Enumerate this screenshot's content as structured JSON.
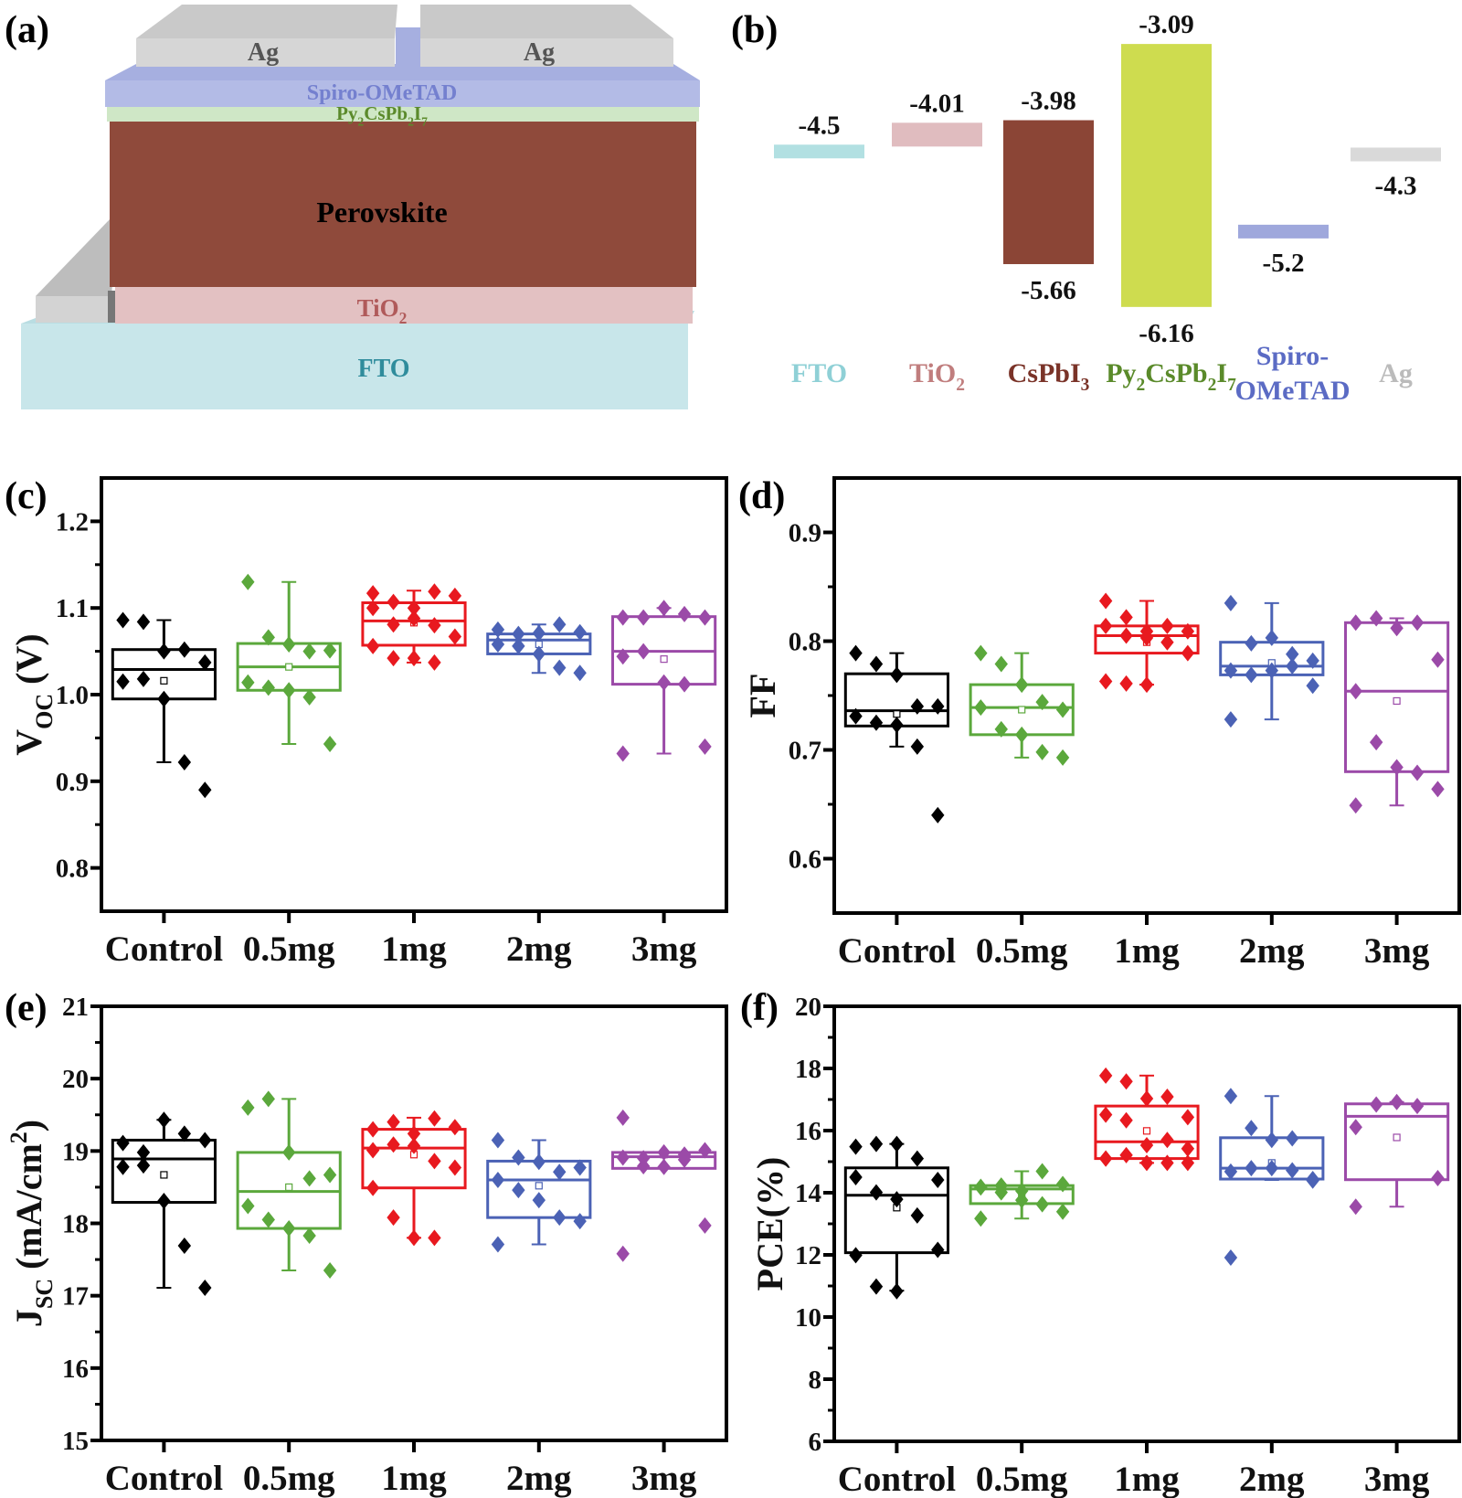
{
  "panel_labels": {
    "a": "(a)",
    "b": "(b)",
    "c": "(c)",
    "d": "(d)",
    "e": "(e)",
    "f": "(f)"
  },
  "schematic": {
    "layers": [
      {
        "id": "ag-left",
        "label": [
          {
            "t": "Ag"
          }
        ],
        "color": "#d3d3d3",
        "text_color": "#555555"
      },
      {
        "id": "ag-right",
        "label": [
          {
            "t": "Ag"
          }
        ],
        "color": "#d3d3d3",
        "text_color": "#555555"
      },
      {
        "id": "spiro",
        "label": [
          {
            "t": "Spiro-OMeTAD"
          }
        ],
        "color": "#b3bbe6",
        "text_color": "#7480cf"
      },
      {
        "id": "py",
        "label": [
          {
            "t": "Py"
          },
          {
            "t": "2",
            "sub": true
          },
          {
            "t": "CsPb"
          },
          {
            "t": "2",
            "sub": true
          },
          {
            "t": "I"
          },
          {
            "t": "7",
            "sub": true
          }
        ],
        "color": "#cfe7c6",
        "text_color": "#5b8a2b"
      },
      {
        "id": "perovskite",
        "label": [
          {
            "t": "Perovskite"
          }
        ],
        "color": "#8f4a3b",
        "text_color": "#000000"
      },
      {
        "id": "tio2",
        "label": [
          {
            "t": "TiO"
          },
          {
            "t": "2",
            "sub": true
          }
        ],
        "color": "#e3c1c2",
        "text_color": "#b05a5a"
      },
      {
        "id": "fto",
        "label": [
          {
            "t": "FTO"
          }
        ],
        "color": "#c8e6ea",
        "text_color": "#2f8c9c"
      }
    ]
  },
  "chart_data": [
    {
      "panel": "b",
      "type": "bar",
      "ylabel": "",
      "materials": [
        {
          "name": [
            {
              "t": "FTO"
            }
          ],
          "levels": [
            -4.5
          ],
          "color": "#b2e0e2",
          "text_color": "#8fd0d6"
        },
        {
          "name": [
            {
              "t": "TiO"
            },
            {
              "t": "2",
              "sub": true
            }
          ],
          "levels": [
            -4.01
          ],
          "color": "#e0bcbf",
          "text_color": "#c07d7d"
        },
        {
          "name": [
            {
              "t": "CsPbI"
            },
            {
              "t": "3",
              "sub": true
            }
          ],
          "levels": [
            -3.98,
            -5.66
          ],
          "color": "#8b4536",
          "text_color": "#7a3328"
        },
        {
          "name": [
            {
              "t": "Py"
            },
            {
              "t": "2",
              "sub": true
            },
            {
              "t": "CsPb"
            },
            {
              "t": "2",
              "sub": true
            },
            {
              "t": "I"
            },
            {
              "t": "7",
              "sub": true
            }
          ],
          "levels": [
            -3.09,
            -6.16
          ],
          "color": "#cedc4f",
          "text_color": "#5a8a2a"
        },
        {
          "name": [
            {
              "t": "Spiro-"
            }
          ],
          "name2": [
            {
              "t": "OMeTAD"
            }
          ],
          "levels": [
            -5.2
          ],
          "color": "#9fa8dc",
          "text_color": "#5b6bc4"
        },
        {
          "name": [
            {
              "t": "Ag"
            }
          ],
          "levels": [
            -4.3
          ],
          "color": "#d9d9d9",
          "text_color": "#bbbbbb"
        }
      ]
    },
    {
      "panel": "c",
      "type": "box",
      "ylabel": [
        {
          "t": "V"
        },
        {
          "t": "OC",
          "sub": true
        },
        {
          "t": " (V)"
        }
      ],
      "ylim": [
        0.75,
        1.25
      ],
      "yticks": [
        0.8,
        0.9,
        1.0,
        1.1,
        1.2
      ],
      "ytick_labels": [
        "0.8",
        "0.9",
        "1.0",
        "1.1",
        "1.2"
      ],
      "categories": [
        "Control",
        "0.5mg",
        "1mg",
        "2mg",
        "3mg"
      ],
      "groups": [
        {
          "color": "#000000",
          "box": {
            "q1": 0.995,
            "median": 1.029,
            "q3": 1.052,
            "whisker_low": 0.922,
            "whisker_high": 1.086,
            "mean": 1.016
          },
          "points": [
            1.086,
            1.084,
            1.05,
            1.052,
            1.037,
            1.015,
            1.018,
            0.995,
            0.922,
            0.89
          ]
        },
        {
          "color": "#5ba83c",
          "box": {
            "q1": 1.005,
            "median": 1.032,
            "q3": 1.059,
            "whisker_low": 0.943,
            "whisker_high": 1.13,
            "mean": 1.032
          },
          "points": [
            1.13,
            1.066,
            1.058,
            1.05,
            1.051,
            1.014,
            1.008,
            1.005,
            0.997,
            0.943
          ]
        },
        {
          "color": "#e8191f",
          "box": {
            "q1": 1.057,
            "median": 1.085,
            "q3": 1.106,
            "whisker_low": 1.037,
            "whisker_high": 1.12,
            "mean": 1.083
          },
          "points": [
            1.1,
            1.107,
            1.1,
            1.119,
            1.114,
            1.117,
            1.081,
            1.088,
            1.08,
            1.067,
            1.056,
            1.042,
            1.042,
            1.037
          ]
        },
        {
          "color": "#4b62b5",
          "box": {
            "q1": 1.047,
            "median": 1.063,
            "q3": 1.07,
            "whisker_low": 1.025,
            "whisker_high": 1.081,
            "mean": 1.058
          },
          "points": [
            1.058,
            1.056,
            1.071,
            1.081,
            1.072,
            1.075,
            1.07,
            1.047,
            1.031,
            1.025
          ]
        },
        {
          "color": "#9b4aa8",
          "box": {
            "q1": 1.012,
            "median": 1.05,
            "q3": 1.09,
            "whisker_low": 0.932,
            "whisker_high": 1.1,
            "mean": 1.041
          },
          "points": [
            1.089,
            1.089,
            1.1,
            1.093,
            1.089,
            1.044,
            1.05,
            1.014,
            1.012,
            0.94,
            0.932
          ]
        }
      ]
    },
    {
      "panel": "d",
      "type": "box",
      "ylabel": [
        {
          "t": "FF"
        }
      ],
      "ylim": [
        0.55,
        0.95
      ],
      "yticks": [
        0.6,
        0.7,
        0.8,
        0.9
      ],
      "ytick_labels": [
        "0.6",
        "0.7",
        "0.8",
        "0.9"
      ],
      "categories": [
        "Control",
        "0.5mg",
        "1mg",
        "2mg",
        "3mg"
      ],
      "groups": [
        {
          "color": "#000000",
          "box": {
            "q1": 0.722,
            "median": 0.736,
            "q3": 0.77,
            "whisker_low": 0.703,
            "whisker_high": 0.789,
            "mean": 0.733
          },
          "points": [
            0.789,
            0.779,
            0.769,
            0.74,
            0.74,
            0.731,
            0.725,
            0.723,
            0.703,
            0.64
          ]
        },
        {
          "color": "#5ba83c",
          "box": {
            "q1": 0.714,
            "median": 0.739,
            "q3": 0.76,
            "whisker_low": 0.693,
            "whisker_high": 0.789,
            "mean": 0.737
          },
          "points": [
            0.789,
            0.779,
            0.76,
            0.744,
            0.737,
            0.739,
            0.719,
            0.714,
            0.698,
            0.693
          ]
        },
        {
          "color": "#e8191f",
          "box": {
            "q1": 0.789,
            "median": 0.805,
            "q3": 0.814,
            "whisker_low": 0.76,
            "whisker_high": 0.837,
            "mean": 0.799
          },
          "points": [
            0.837,
            0.822,
            0.809,
            0.814,
            0.809,
            0.814,
            0.805,
            0.803,
            0.799,
            0.789,
            0.763,
            0.761,
            0.76
          ]
        },
        {
          "color": "#4b62b5",
          "box": {
            "q1": 0.769,
            "median": 0.777,
            "q3": 0.799,
            "whisker_low": 0.728,
            "whisker_high": 0.835,
            "mean": 0.78
          },
          "points": [
            0.835,
            0.798,
            0.803,
            0.788,
            0.782,
            0.773,
            0.769,
            0.773,
            0.777,
            0.759,
            0.728
          ]
        },
        {
          "color": "#9b4aa8",
          "box": {
            "q1": 0.68,
            "median": 0.754,
            "q3": 0.817,
            "whisker_low": 0.649,
            "whisker_high": 0.821,
            "mean": 0.745
          },
          "points": [
            0.817,
            0.821,
            0.812,
            0.817,
            0.783,
            0.754,
            0.707,
            0.684,
            0.679,
            0.664,
            0.649
          ]
        }
      ]
    },
    {
      "panel": "e",
      "type": "box",
      "ylabel": [
        {
          "t": "J"
        },
        {
          "t": "SC",
          "sub": true
        },
        {
          "t": " (mA/cm"
        },
        {
          "t": "2",
          "sup": true
        },
        {
          "t": ")"
        }
      ],
      "ylim": [
        15,
        21
      ],
      "yticks": [
        15,
        16,
        17,
        18,
        19,
        20,
        21
      ],
      "ytick_labels": [
        "15",
        "16",
        "17",
        "18",
        "19",
        "20",
        "21"
      ],
      "categories": [
        "Control",
        "0.5mg",
        "1mg",
        "2mg",
        "3mg"
      ],
      "groups": [
        {
          "color": "#000000",
          "box": {
            "q1": 18.29,
            "median": 18.89,
            "q3": 19.15,
            "whisker_low": 17.11,
            "whisker_high": 19.43,
            "mean": 18.67
          },
          "points": [
            19.11,
            18.98,
            19.43,
            19.24,
            19.15,
            18.78,
            18.8,
            18.31,
            17.69,
            17.11
          ]
        },
        {
          "color": "#5ba83c",
          "box": {
            "q1": 17.93,
            "median": 18.44,
            "q3": 18.98,
            "whisker_low": 17.35,
            "whisker_high": 19.72,
            "mean": 18.5
          },
          "points": [
            19.6,
            19.72,
            18.98,
            18.62,
            18.67,
            18.24,
            18.05,
            17.93,
            17.83,
            17.35
          ]
        },
        {
          "color": "#e8191f",
          "box": {
            "q1": 18.49,
            "median": 19.04,
            "q3": 19.3,
            "whisker_low": 17.8,
            "whisker_high": 19.46,
            "mean": 18.95
          },
          "points": [
            19.3,
            19.4,
            19.24,
            19.45,
            19.33,
            19.01,
            19.09,
            19.07,
            18.86,
            18.77,
            18.49,
            18.08,
            17.8,
            17.8
          ]
        },
        {
          "color": "#4b62b5",
          "box": {
            "q1": 18.08,
            "median": 18.6,
            "q3": 18.86,
            "whisker_low": 17.71,
            "whisker_high": 19.15,
            "mean": 18.52
          },
          "points": [
            19.15,
            18.91,
            18.85,
            18.71,
            18.77,
            18.6,
            18.46,
            18.32,
            18.08,
            18.03,
            17.71
          ]
        },
        {
          "color": "#9b4aa8",
          "box": {
            "q1": 18.76,
            "median": 18.92,
            "q3": 18.98,
            "whisker_low": 18.76,
            "whisker_high": 18.98,
            "mean": 18.95
          },
          "points": [
            19.46,
            18.9,
            18.98,
            18.95,
            19.01,
            18.91,
            18.79,
            18.78,
            18.88,
            17.97,
            17.58
          ]
        }
      ]
    },
    {
      "panel": "f",
      "type": "box",
      "ylabel": [
        {
          "t": "PCE(%)"
        }
      ],
      "ylim": [
        6,
        20
      ],
      "yticks": [
        6,
        8,
        10,
        12,
        14,
        16,
        18,
        20
      ],
      "ytick_labels": [
        "6",
        "8",
        "10",
        "12",
        "14",
        "16",
        "18",
        "20"
      ],
      "categories": [
        "Control",
        "0.5mg",
        "1mg",
        "2mg",
        "3mg"
      ],
      "groups": [
        {
          "color": "#000000",
          "box": {
            "q1": 12.07,
            "median": 13.92,
            "q3": 14.8,
            "whisker_low": 10.85,
            "whisker_high": 15.57,
            "mean": 13.52
          },
          "points": [
            15.48,
            15.57,
            15.57,
            15.1,
            14.41,
            14.5,
            14.01,
            13.79,
            13.27,
            12.16,
            11.99,
            10.98,
            10.83
          ]
        },
        {
          "color": "#5ba83c",
          "box": {
            "q1": 13.65,
            "median": 14.12,
            "q3": 14.23,
            "whisker_low": 13.17,
            "whisker_high": 14.69,
            "mean": 13.98
          },
          "points": [
            14.19,
            14.23,
            14.06,
            14.69,
            14.28,
            14.17,
            14.01,
            13.76,
            13.63,
            13.39,
            13.17
          ]
        },
        {
          "color": "#e8191f",
          "box": {
            "q1": 15.1,
            "median": 15.64,
            "q3": 16.79,
            "whisker_low": 14.96,
            "whisker_high": 17.77,
            "mean": 15.99
          },
          "points": [
            17.77,
            17.58,
            17.03,
            17.09,
            16.43,
            16.51,
            16.33,
            15.53,
            15.7,
            15.42,
            15.1,
            15.21,
            14.96,
            14.96,
            14.96,
            15.1
          ]
        },
        {
          "color": "#4b62b5",
          "box": {
            "q1": 14.44,
            "median": 14.79,
            "q3": 15.77,
            "whisker_low": 14.41,
            "whisker_high": 17.11,
            "mean": 14.96
          },
          "points": [
            17.11,
            16.08,
            15.7,
            15.75,
            14.39,
            14.68,
            14.79,
            14.79,
            14.72,
            14.44,
            11.91
          ]
        },
        {
          "color": "#9b4aa8",
          "box": {
            "q1": 14.42,
            "median": 16.46,
            "q3": 16.86,
            "whisker_low": 13.55,
            "whisker_high": 16.92,
            "mean": 15.78
          },
          "points": [
            16.11,
            16.84,
            16.92,
            16.79,
            14.47,
            13.55
          ]
        }
      ]
    }
  ]
}
